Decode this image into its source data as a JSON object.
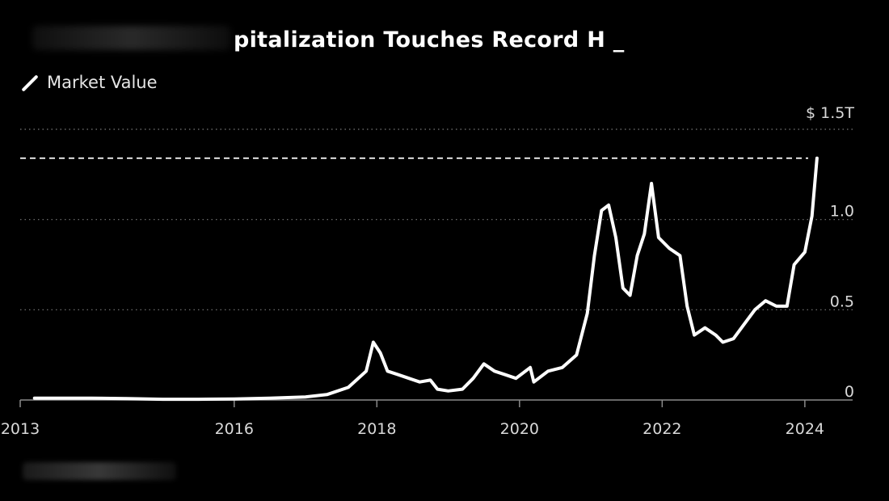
{
  "title": {
    "visible_text": "pitalization Touches Record H"
  },
  "legend": {
    "label": "Market Value"
  },
  "source": {
    "label": ""
  },
  "chart_data": {
    "type": "line",
    "series": [
      {
        "name": "Market Value",
        "points": [
          [
            "2013.2",
            0.01
          ],
          [
            "2013.9",
            0.01
          ],
          [
            "2014.0",
            0.01
          ],
          [
            "2014.5",
            0.008
          ],
          [
            "2015.0",
            0.004
          ],
          [
            "2015.5",
            0.004
          ],
          [
            "2016.0",
            0.006
          ],
          [
            "2016.5",
            0.01
          ],
          [
            "2017.0",
            0.017
          ],
          [
            "2017.3",
            0.03
          ],
          [
            "2017.6",
            0.07
          ],
          [
            "2017.85",
            0.16
          ],
          [
            "2017.95",
            0.32
          ],
          [
            "2018.05",
            0.26
          ],
          [
            "2018.15",
            0.16
          ],
          [
            "2018.3",
            0.14
          ],
          [
            "2018.45",
            0.12
          ],
          [
            "2018.6",
            0.1
          ],
          [
            "2018.75",
            0.11
          ],
          [
            "2018.85",
            0.06
          ],
          [
            "2019.0",
            0.05
          ],
          [
            "2019.2",
            0.06
          ],
          [
            "2019.35",
            0.12
          ],
          [
            "2019.5",
            0.2
          ],
          [
            "2019.65",
            0.16
          ],
          [
            "2019.8",
            0.14
          ],
          [
            "2019.95",
            0.12
          ],
          [
            "2020.15",
            0.18
          ],
          [
            "2020.2",
            0.1
          ],
          [
            "2020.4",
            0.16
          ],
          [
            "2020.6",
            0.18
          ],
          [
            "2020.8",
            0.25
          ],
          [
            "2020.95",
            0.48
          ],
          [
            "2021.05",
            0.8
          ],
          [
            "2021.15",
            1.05
          ],
          [
            "2021.25",
            1.08
          ],
          [
            "2021.35",
            0.9
          ],
          [
            "2021.45",
            0.62
          ],
          [
            "2021.55",
            0.58
          ],
          [
            "2021.65",
            0.8
          ],
          [
            "2021.75",
            0.92
          ],
          [
            "2021.85",
            1.2
          ],
          [
            "2021.95",
            0.9
          ],
          [
            "2022.1",
            0.84
          ],
          [
            "2022.25",
            0.8
          ],
          [
            "2022.35",
            0.52
          ],
          [
            "2022.45",
            0.36
          ],
          [
            "2022.6",
            0.4
          ],
          [
            "2022.75",
            0.36
          ],
          [
            "2022.85",
            0.32
          ],
          [
            "2023.0",
            0.34
          ],
          [
            "2023.15",
            0.42
          ],
          [
            "2023.3",
            0.5
          ],
          [
            "2023.45",
            0.55
          ],
          [
            "2023.6",
            0.52
          ],
          [
            "2023.75",
            0.52
          ],
          [
            "2023.85",
            0.75
          ],
          [
            "2024.0",
            0.82
          ],
          [
            "2024.1",
            1.02
          ],
          [
            "2024.17",
            1.34
          ]
        ]
      }
    ],
    "x_ticks": [
      "2013",
      "2016",
      "2018",
      "2020",
      "2022",
      "2024"
    ],
    "y_ticks": [
      "0",
      "0.5",
      "1.0",
      "$ 1.5T"
    ],
    "xlim": [
      "2013",
      "2024.67"
    ],
    "ylim": [
      0,
      1.5
    ],
    "record_high_line": 1.34,
    "grid": "horizontal-dotted",
    "legend_position": "top-left"
  },
  "colors": {
    "background": "#000000",
    "line": "#ffffff",
    "grid": "#7a7a7a",
    "text": "#d9d9d9"
  }
}
